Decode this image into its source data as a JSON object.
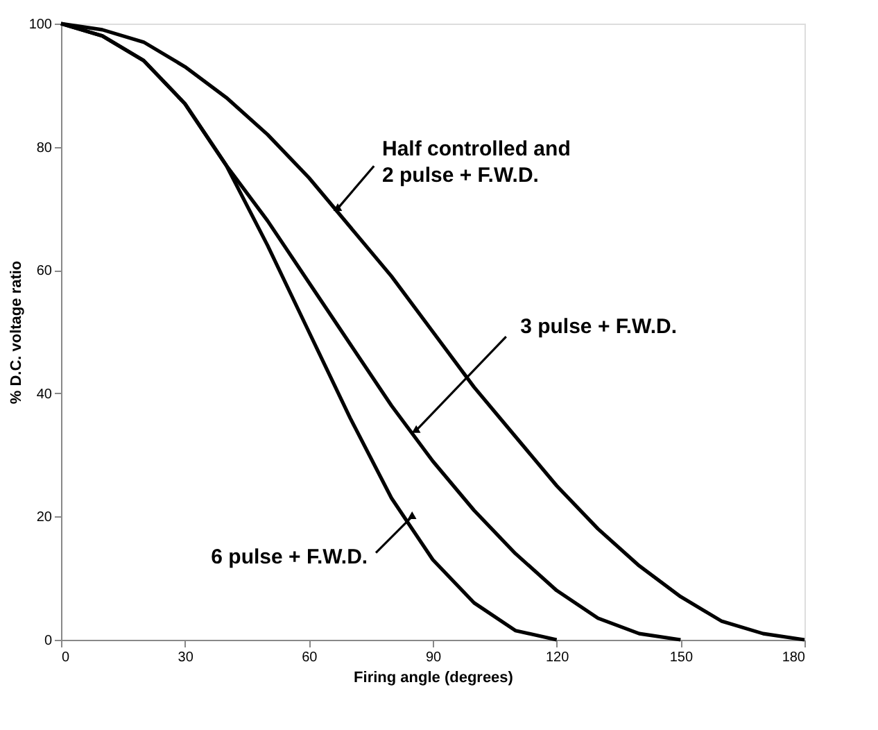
{
  "chart_data": {
    "type": "line",
    "xlabel": "Firing angle (degrees)",
    "ylabel": "% D.C. voltage ratio",
    "xlim": [
      0,
      180
    ],
    "xticks": [
      0,
      30,
      60,
      90,
      120,
      150,
      180
    ],
    "ylim": [
      0,
      100
    ],
    "yticks": [
      0,
      20,
      40,
      60,
      80,
      100
    ],
    "grid": false,
    "legend": false,
    "marker": "none",
    "line_style": "solid",
    "series": [
      {
        "color": "#000000",
        "x": [
          0,
          10,
          20,
          30,
          40,
          50,
          60,
          70,
          80,
          90,
          100,
          110,
          120,
          130,
          140,
          150,
          160,
          170,
          180
        ],
        "values": [
          100,
          99,
          97,
          93,
          88,
          82,
          75,
          67,
          59,
          50,
          41,
          33,
          25,
          18,
          12,
          7,
          3,
          1,
          0
        ]
      },
      {
        "color": "#000000",
        "x": [
          0,
          10,
          20,
          30,
          40,
          50,
          60,
          70,
          80,
          90,
          100,
          110,
          120,
          130,
          140,
          150
        ],
        "values": [
          100,
          98,
          94,
          87,
          77,
          68,
          58,
          48,
          38,
          29,
          21,
          14,
          8,
          3.5,
          1,
          0
        ]
      },
      {
        "color": "#000000",
        "x": [
          0,
          10,
          20,
          30,
          40,
          50,
          60,
          70,
          80,
          90,
          100,
          110,
          120
        ],
        "values": [
          100,
          98,
          94,
          87,
          77,
          64,
          50,
          36,
          23,
          13,
          6,
          1.5,
          0
        ]
      }
    ],
    "annotations": [
      {
        "text": "Half controlled and\n2 pulse + F.W.D.",
        "x": 67,
        "y": 70
      },
      {
        "text": "3 pulse + F.W.D.",
        "x": 86,
        "y": 34
      },
      {
        "text": "6 pulse + F.W.D.",
        "x": 85,
        "y": 20
      }
    ]
  }
}
